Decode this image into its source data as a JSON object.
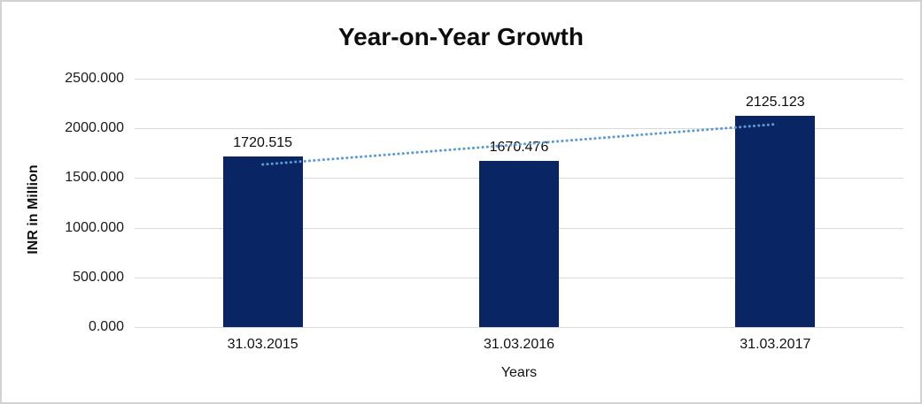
{
  "window": {
    "background": "#FFFFFF",
    "border_color": "#D2D2D2"
  },
  "chart_data": {
    "type": "bar",
    "title": "Year-on-Year Growth",
    "categories": [
      "31.03.2015",
      "31.03.2016",
      "31.03.2017"
    ],
    "values": [
      1720.515,
      1670.476,
      2125.123
    ],
    "value_labels": [
      "1720.515",
      "1670.476",
      "2125.123"
    ],
    "xlabel": "Years",
    "ylabel": "INR in Million",
    "ylim": [
      0,
      2500
    ],
    "yticks": [
      0,
      500,
      1000,
      1500,
      2000,
      2500
    ],
    "ytick_labels": [
      "0.000",
      "500.000",
      "1000.000",
      "1500.000",
      "2000.000",
      "2500.000"
    ],
    "grid": true,
    "legend_position": "none",
    "bar_color": "#0A2563",
    "gridline_color": "#D9D9D9",
    "text_color": "#1A1A1A",
    "trendline": {
      "type": "linear",
      "style": "dotted",
      "color": "#5B9BD5",
      "span": "first-bar-center-to-last-bar-center"
    }
  }
}
